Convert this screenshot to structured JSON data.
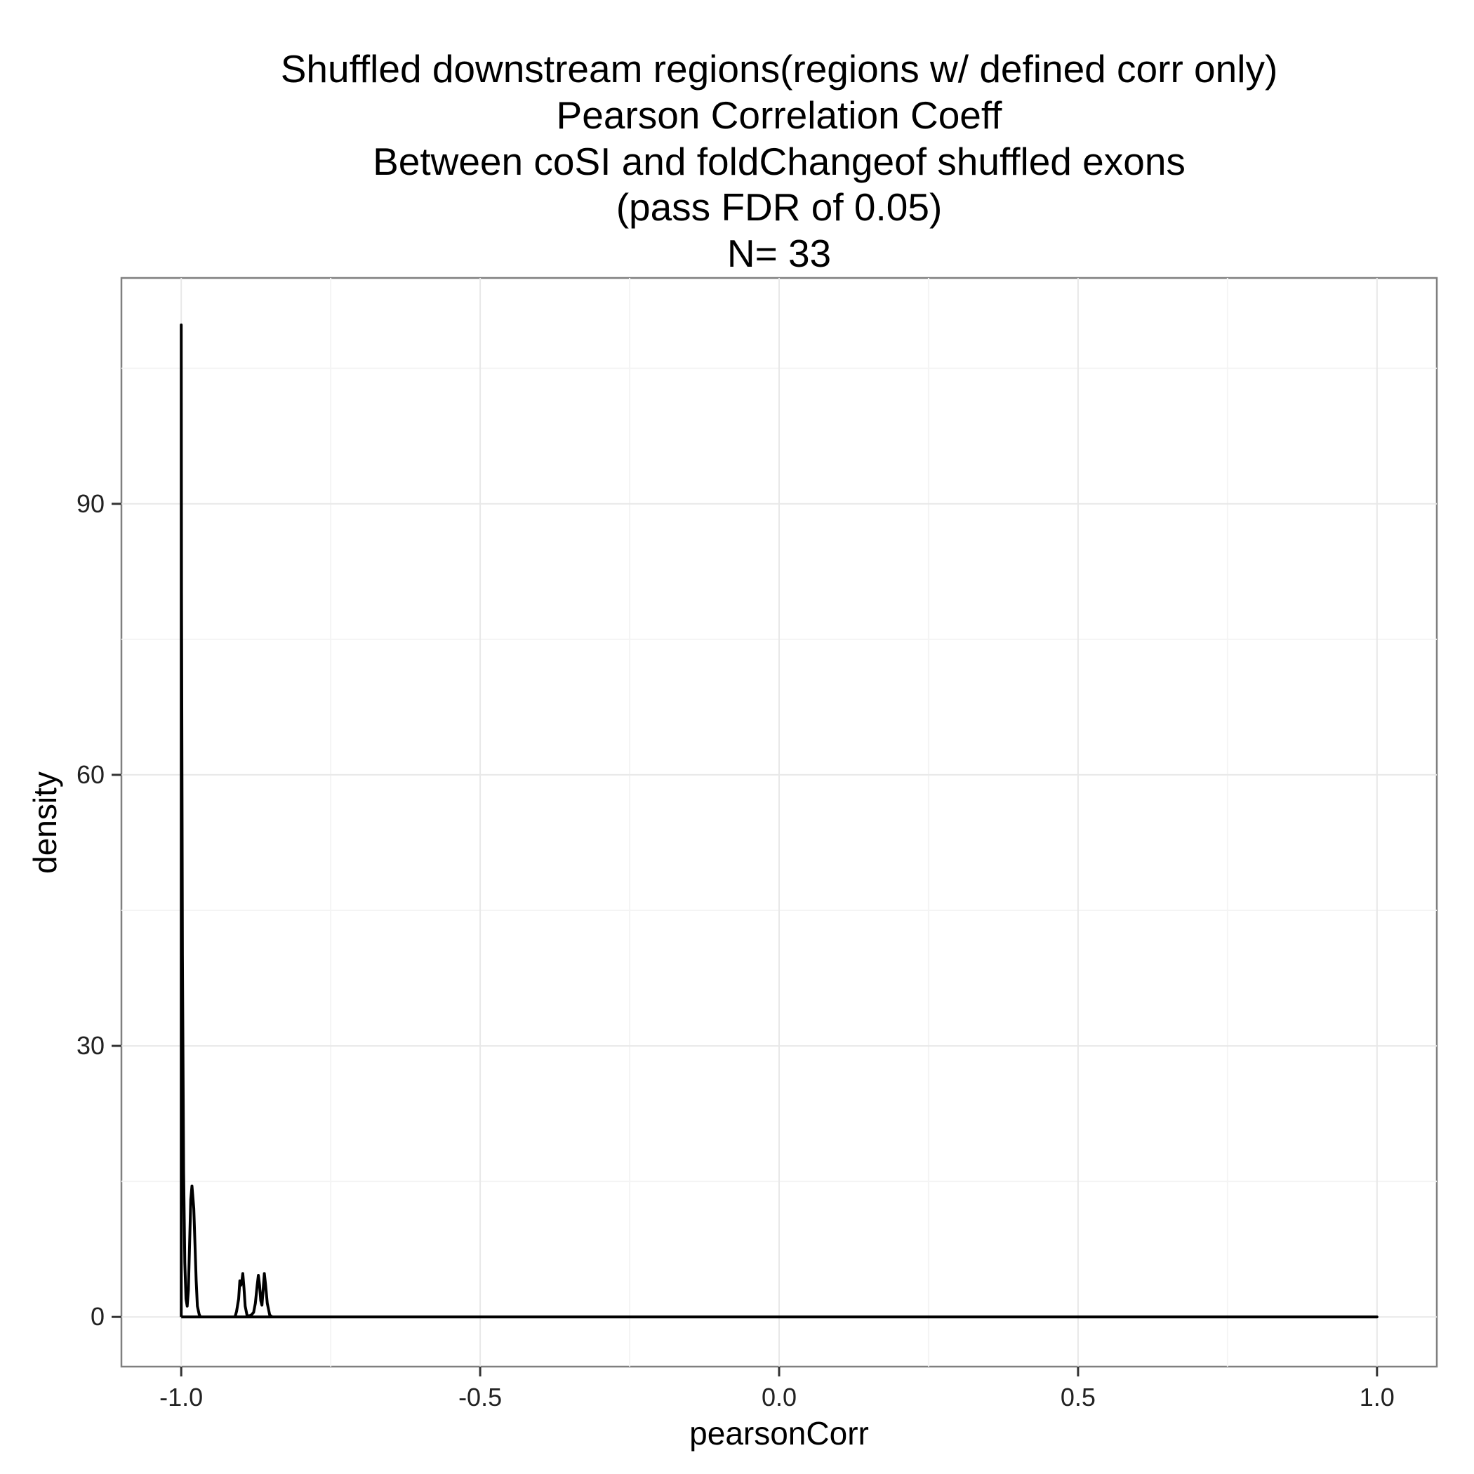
{
  "chart_data": {
    "type": "line",
    "title_lines": [
      "Shuffled downstream regions(regions w/ defined corr only)",
      "Pearson Correlation Coeff",
      "Between coSI and foldChangeof shuffled exons",
      "(pass FDR of 0.05)",
      "N= 33"
    ],
    "xlabel": "pearsonCorr",
    "ylabel": "density",
    "xlim": [
      -1.1,
      1.1
    ],
    "ylim": [
      -5.5,
      115
    ],
    "x_ticks": [
      -1.0,
      -0.5,
      0.0,
      0.5,
      1.0
    ],
    "x_tick_labels": [
      "-1.0",
      "-0.5",
      "0.0",
      "0.5",
      "1.0"
    ],
    "y_ticks": [
      0,
      30,
      60,
      90
    ],
    "y_tick_labels": [
      "0",
      "30",
      "60",
      "90"
    ],
    "grid": true,
    "series": [
      {
        "x": [
          -1.0,
          -0.9995,
          -0.998,
          -0.996,
          -0.994,
          -0.992,
          -0.99,
          -0.988,
          -0.986,
          -0.984,
          -0.982,
          -0.979,
          -0.977,
          -0.975,
          -0.973,
          -0.97,
          -0.968,
          -0.96,
          -0.95,
          -0.93,
          -0.91,
          -0.9075,
          -0.904,
          -0.902,
          -0.9005,
          -0.899,
          -0.897,
          -0.895,
          -0.893,
          -0.89,
          -0.887,
          -0.883,
          -0.879,
          -0.876,
          -0.873,
          -0.871,
          -0.869,
          -0.867,
          -0.865,
          -0.863,
          -0.861,
          -0.859,
          -0.856,
          -0.852,
          -0.848,
          -0.84,
          -0.8,
          -0.5,
          0.0,
          0.5,
          1.0
        ],
        "y": [
          109.8,
          80,
          40,
          16,
          6,
          2,
          1.2,
          3,
          8,
          13,
          14.5,
          12,
          8,
          4,
          1.2,
          0.3,
          0,
          0,
          0,
          0,
          0,
          0.6,
          2,
          4,
          3.5,
          3.7,
          4.8,
          3.2,
          1.2,
          0.2,
          0.1,
          0.2,
          0.5,
          1.5,
          3.5,
          4.6,
          3.5,
          1.8,
          1.3,
          3.0,
          4.8,
          3.6,
          1.5,
          0.2,
          0,
          0,
          0,
          0,
          0,
          0,
          0
        ]
      }
    ]
  }
}
